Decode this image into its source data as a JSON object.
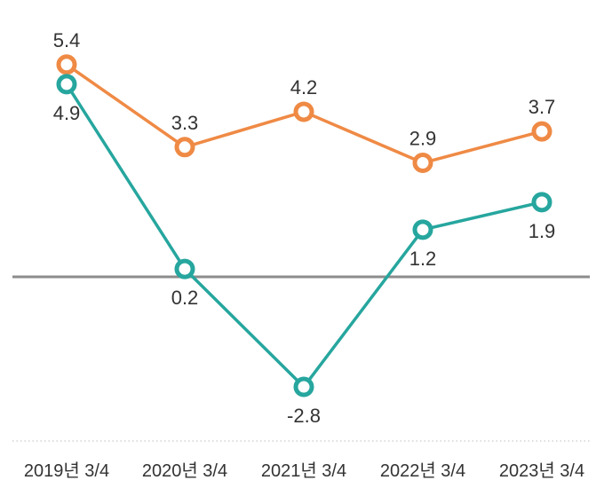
{
  "chart_data": {
    "type": "line",
    "categories": [
      "2019년 3/4",
      "2020년 3/4",
      "2021년 3/4",
      "2022년 3/4",
      "2023년 3/4"
    ],
    "series": [
      {
        "values": [
          5.4,
          3.3,
          4.2,
          2.9,
          3.7
        ],
        "color": "#EF8A45",
        "label_position": "above"
      },
      {
        "values": [
          4.9,
          0.2,
          -2.8,
          1.2,
          1.9
        ],
        "color": "#26A69E",
        "label_position": "below"
      }
    ],
    "value_labels": [
      [
        "5.4",
        "3.3",
        "4.2",
        "2.9",
        "3.7"
      ],
      [
        "4.9",
        "0.2",
        "-2.8",
        "1.2",
        "1.9"
      ]
    ],
    "baseline": 0,
    "baseline_color": "#8C8C8C",
    "grid": false,
    "legend": "none",
    "title": "",
    "xlabel": "",
    "ylabel": ""
  }
}
